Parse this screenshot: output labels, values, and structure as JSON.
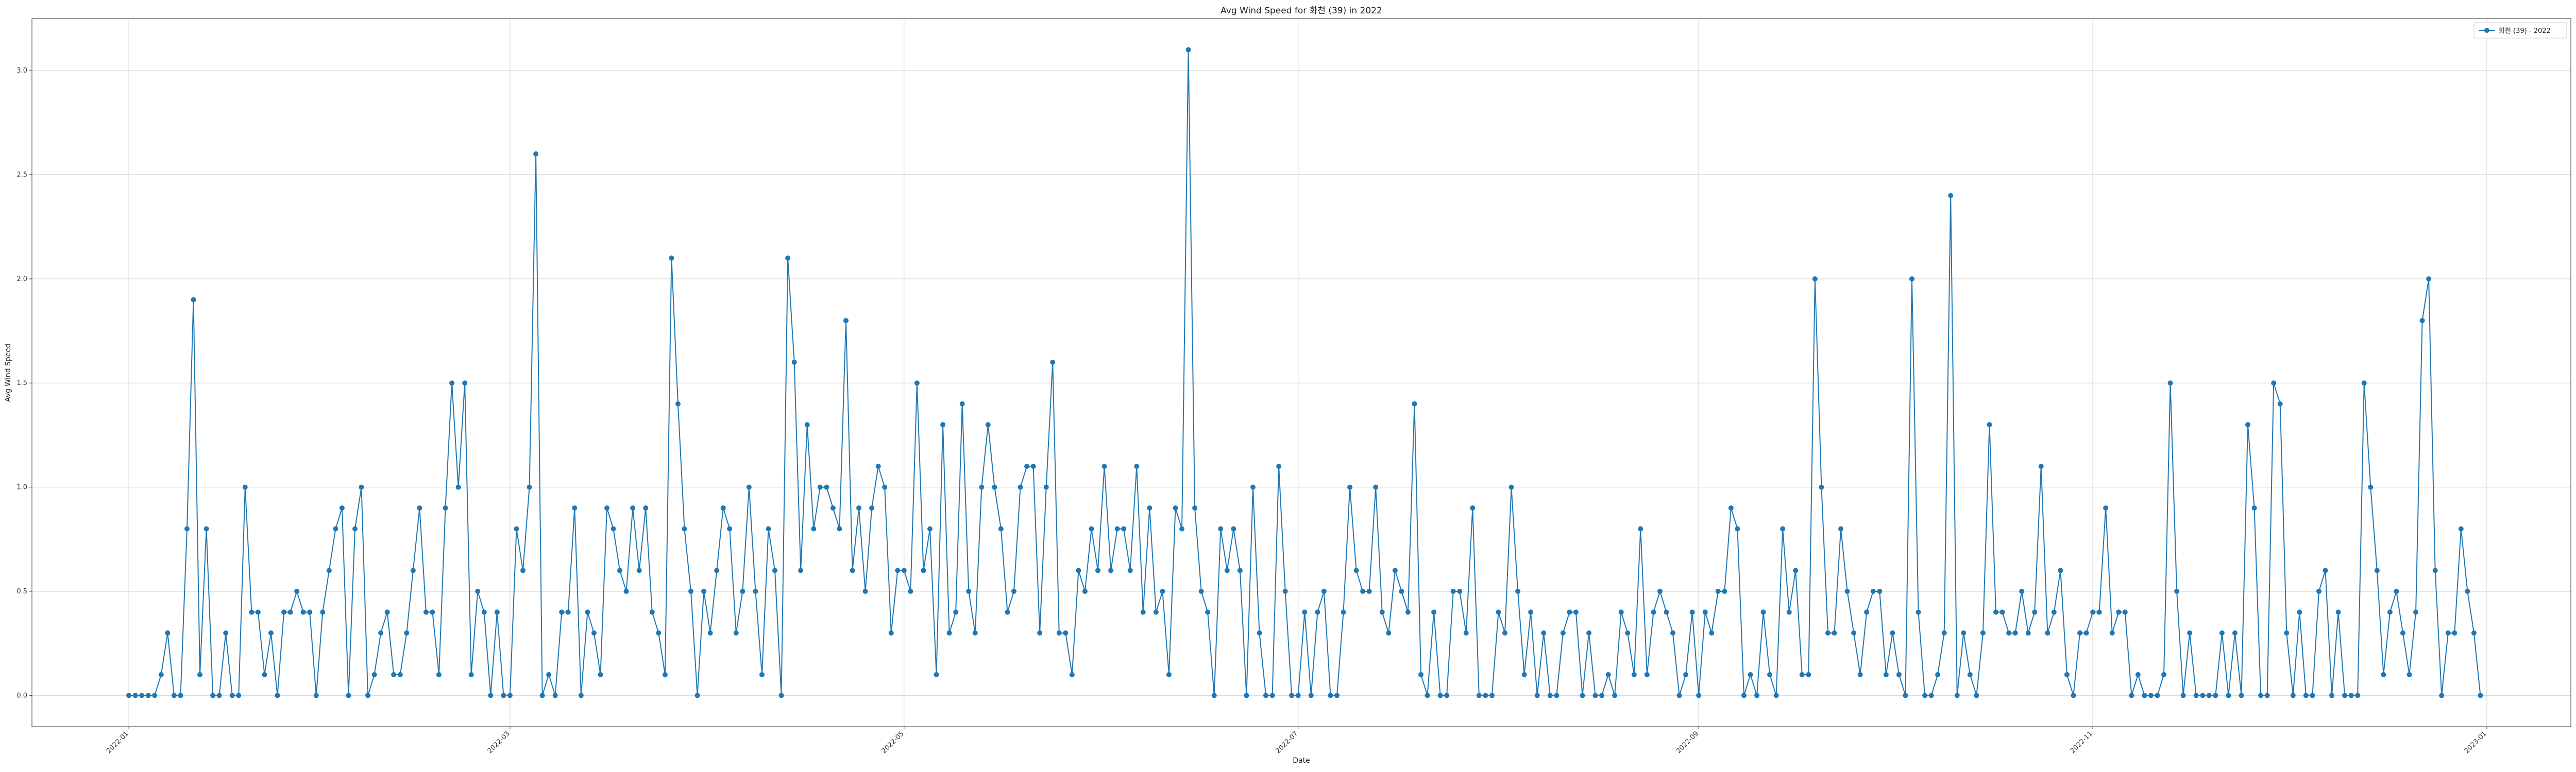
{
  "chart_data": {
    "type": "line",
    "title": "Avg Wind Speed for 화천 (39) in 2022",
    "xlabel": "Date",
    "ylabel": "Avg Wind Speed",
    "xlim": [
      "2021-12-17",
      "2023-01-14"
    ],
    "ylim": [
      -0.15,
      3.25
    ],
    "y_ticks": [
      0.0,
      0.5,
      1.0,
      1.5,
      2.0,
      2.5,
      3.0
    ],
    "y_tick_labels": [
      "0.0",
      "0.5",
      "1.0",
      "1.5",
      "2.0",
      "2.5",
      "3.0"
    ],
    "x_ticks": [
      "2022-01-01",
      "2022-03-01",
      "2022-05-01",
      "2022-07-01",
      "2022-09-01",
      "2022-11-01",
      "2023-01-01"
    ],
    "x_tick_labels": [
      "2022-01",
      "2022-03",
      "2022-05",
      "2022-07",
      "2022-09",
      "2022-11",
      "2023-01"
    ],
    "grid": true,
    "legend_position": "top-right",
    "line_color": "#1f77b4",
    "x_start_date": "2022-01-01",
    "series": [
      {
        "name": "화천 (39) - 2022",
        "values": [
          0,
          0,
          0,
          0,
          0,
          0.1,
          0.3,
          0,
          0,
          0.8,
          1.9,
          0.1,
          0.8,
          0,
          0,
          0.3,
          0,
          0,
          1.0,
          0.4,
          0.4,
          0.1,
          0.3,
          0,
          0.4,
          0.4,
          0.5,
          0.4,
          0.4,
          0,
          0.4,
          0.6,
          0.8,
          0.9,
          0,
          0.8,
          1.0,
          0,
          0.1,
          0.3,
          0.4,
          0.1,
          0.1,
          0.3,
          0.6,
          0.9,
          0.4,
          0.4,
          0.1,
          0.9,
          1.5,
          1.0,
          1.5,
          0.1,
          0.5,
          0.4,
          0,
          0.4,
          0,
          0,
          0.8,
          0.6,
          1.0,
          2.6,
          0,
          0.1,
          0,
          0.4,
          0.4,
          0.9,
          0,
          0.4,
          0.3,
          0.1,
          0.9,
          0.8,
          0.6,
          0.5,
          0.9,
          0.6,
          0.9,
          0.4,
          0.3,
          0.1,
          2.1,
          1.4,
          0.8,
          0.5,
          0,
          0.5,
          0.3,
          0.6,
          0.9,
          0.8,
          0.3,
          0.5,
          1.0,
          0.5,
          0.1,
          0.8,
          0.6,
          0,
          2.1,
          1.6,
          0.6,
          1.3,
          0.8,
          1.0,
          1.0,
          0.9,
          0.8,
          1.8,
          0.6,
          0.9,
          0.5,
          0.9,
          1.1,
          1.0,
          0.3,
          0.6,
          0.6,
          0.5,
          1.5,
          0.6,
          0.8,
          0.1,
          1.3,
          0.3,
          0.4,
          1.4,
          0.5,
          0.3,
          1.0,
          1.3,
          1.0,
          0.8,
          0.4,
          0.5,
          1.0,
          1.1,
          1.1,
          0.3,
          1.0,
          1.6,
          0.3,
          0.3,
          0.1,
          0.6,
          0.5,
          0.8,
          0.6,
          1.1,
          0.6,
          0.8,
          0.8,
          0.6,
          1.1,
          0.4,
          0.9,
          0.4,
          0.5,
          0.1,
          0.9,
          0.8,
          3.1,
          0.9,
          0.5,
          0.4,
          0,
          0.8,
          0.6,
          0.8,
          0.6,
          0,
          1.0,
          0.3,
          0,
          0,
          1.1,
          0.5,
          0,
          0,
          0.4,
          0,
          0.4,
          0.5,
          0,
          0,
          0.4,
          1.0,
          0.6,
          0.5,
          0.5,
          1.0,
          0.4,
          0.3,
          0.6,
          0.5,
          0.4,
          1.4,
          0.1,
          0,
          0.4,
          0,
          0,
          0.5,
          0.5,
          0.3,
          0.9,
          0,
          0,
          0,
          0.4,
          0.3,
          1.0,
          0.5,
          0.1,
          0.4,
          0,
          0.3,
          0,
          0,
          0.3,
          0.4,
          0.4,
          0,
          0.3,
          0,
          0,
          0.1,
          0,
          0.4,
          0.3,
          0.1,
          0.8,
          0.1,
          0.4,
          0.5,
          0.4,
          0.3,
          0,
          0.1,
          0.4,
          0,
          0.4,
          0.3,
          0.5,
          0.5,
          0.9,
          0.8,
          0,
          0.1,
          0,
          0.4,
          0.1,
          0,
          0.8,
          0.4,
          0.6,
          0.1,
          0.1,
          2.0,
          1.0,
          0.3,
          0.3,
          0.8,
          0.5,
          0.3,
          0.1,
          0.4,
          0.5,
          0.5,
          0.1,
          0.3,
          0.1,
          0,
          2.0,
          0.4,
          0,
          0,
          0.1,
          0.3,
          2.4,
          0,
          0.3,
          0.1,
          0,
          0.3,
          1.3,
          0.4,
          0.4,
          0.3,
          0.3,
          0.5,
          0.3,
          0.4,
          1.1,
          0.3,
          0.4,
          0.6,
          0.1,
          0,
          0.3,
          0.3,
          0.4,
          0.4,
          0.9,
          0.3,
          0.4,
          0.4,
          0,
          0.1,
          0,
          0,
          0,
          0.1,
          1.5,
          0.5,
          0,
          0.3,
          0,
          0,
          0,
          0,
          0.3,
          0,
          0.3,
          0,
          1.3,
          0.9,
          0,
          0,
          1.5,
          1.4,
          0.3,
          0,
          0.4,
          0,
          0,
          0.5,
          0.6,
          0,
          0.4,
          0,
          0,
          0,
          1.5,
          1.0,
          0.6,
          0.1,
          0.4,
          0.5,
          0.3,
          0.1,
          0.4,
          1.8,
          2.0,
          0.6,
          0,
          0.3,
          0.3,
          0.8,
          0.5,
          0.3,
          0
        ]
      }
    ]
  }
}
